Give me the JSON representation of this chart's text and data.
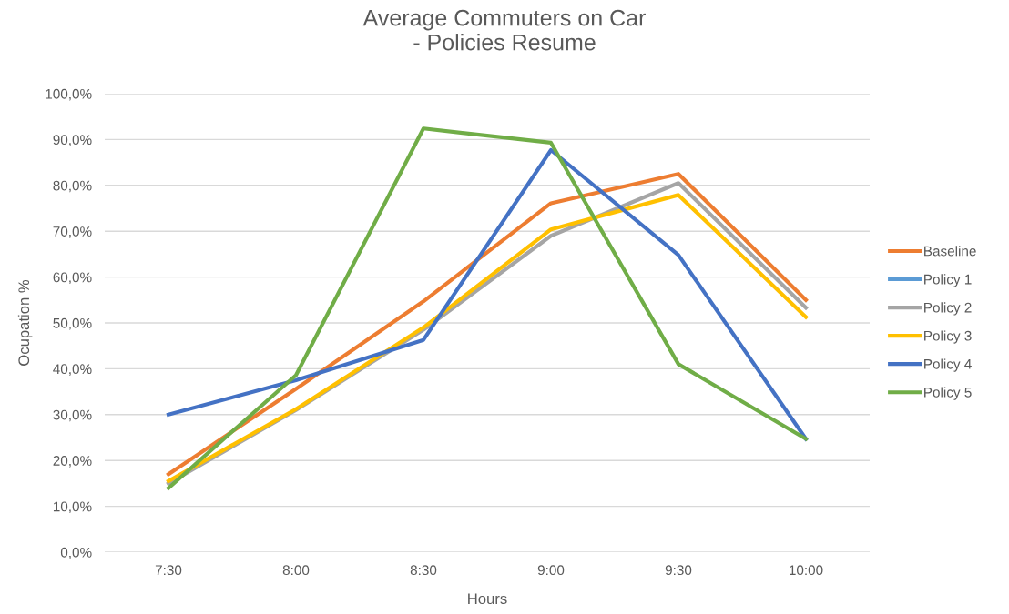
{
  "chart_data": {
    "type": "line",
    "title": "Average Commuters on Car\n- Policies Resume",
    "xlabel": "Hours",
    "ylabel": "Ocupation %",
    "categories": [
      "7:30",
      "8:00",
      "8:30",
      "9:00",
      "9:30",
      "10:00"
    ],
    "series": [
      {
        "name": "Baseline",
        "color": "#ed7d31",
        "values": [
          17,
          35.6,
          54.7,
          76.1,
          82.5,
          55
        ]
      },
      {
        "name": "Policy 1",
        "color": "#5b9bd5",
        "values": [
          null,
          null,
          null,
          null,
          null,
          null
        ]
      },
      {
        "name": "Policy 2",
        "color": "#a5a5a5",
        "values": [
          15,
          31,
          48.5,
          69,
          80.5,
          53.3
        ]
      },
      {
        "name": "Policy 3",
        "color": "#ffc000",
        "values": [
          15.5,
          31.2,
          49,
          70.4,
          77.9,
          51.3
        ]
      },
      {
        "name": "Policy 4",
        "color": "#4472c4",
        "values": [
          30,
          37.5,
          46.3,
          87.7,
          64.8,
          24.7
        ]
      },
      {
        "name": "Policy 5",
        "color": "#70ad47",
        "values": [
          14,
          38.6,
          92.4,
          89.3,
          41,
          24.7
        ]
      }
    ],
    "ylim": [
      0,
      100
    ],
    "yticks": [
      {
        "value": 0,
        "label": "0,0%"
      },
      {
        "value": 10,
        "label": "10,0%"
      },
      {
        "value": 20,
        "label": "20,0%"
      },
      {
        "value": 30,
        "label": "30,0%"
      },
      {
        "value": 40,
        "label": "40,0%"
      },
      {
        "value": 50,
        "label": "50,0%"
      },
      {
        "value": 60,
        "label": "60,0%"
      },
      {
        "value": 70,
        "label": "70,0%"
      },
      {
        "value": 80,
        "label": "80,0%"
      },
      {
        "value": 90,
        "label": "90,0%"
      },
      {
        "value": 100,
        "label": "100,0%"
      }
    ],
    "grid": "y",
    "legend": "right",
    "marker": "none",
    "line_style": "solid"
  }
}
